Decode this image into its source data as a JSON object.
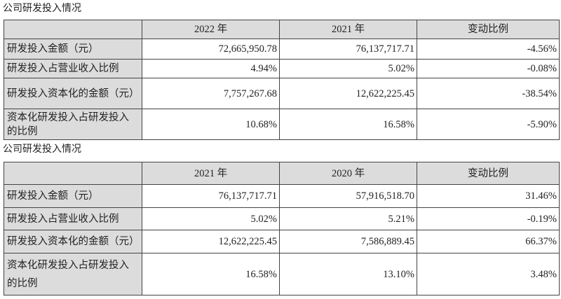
{
  "table1": {
    "title": "公司研发投入情况",
    "headers": [
      "",
      "2022 年",
      "2021 年",
      "变动比例"
    ],
    "rows": [
      [
        "研发投入金额（元）",
        "72,665,950.78",
        "76,137,717.71",
        "-4.56%"
      ],
      [
        "研发投入占营业收入比例",
        "4.94%",
        "5.02%",
        "-0.08%"
      ],
      [
        "研发投入资本化的金额（元）",
        "7,757,267.68",
        "12,622,225.45",
        "-38.54%"
      ],
      [
        "资本化研发投入占研发投入的比例",
        "10.68%",
        "16.58%",
        "-5.90%"
      ]
    ]
  },
  "table2": {
    "title": "公司研发投入情况",
    "headers": [
      "",
      "2021 年",
      "2020 年",
      "变动比例"
    ],
    "rows": [
      [
        "研发投入金额（元）",
        "76,137,717.71",
        "57,916,518.70",
        "31.46%"
      ],
      [
        "研发投入占营业收入比例",
        "5.02%",
        "5.21%",
        "-0.19%"
      ],
      [
        "研发投入资本化的金额（元）",
        "12,622,225.45",
        "7,586,889.45",
        "66.37%"
      ],
      [
        "资本化研发投入占研发投入的比例",
        "16.58%",
        "13.10%",
        "3.48%"
      ]
    ]
  }
}
